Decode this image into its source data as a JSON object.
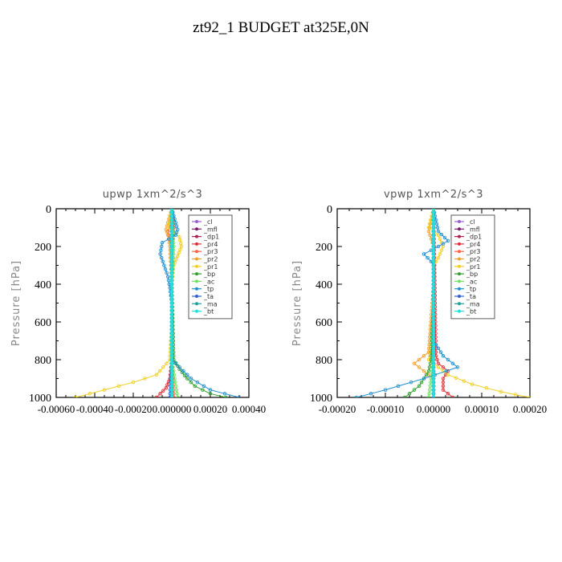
{
  "figure": {
    "title": "zt92_1  BUDGET at325E,0N"
  },
  "chart_data": [
    {
      "type": "line",
      "title": "upwp    1xm^2/s^3",
      "ylabel": "Pressure [hPa]",
      "xlabel": "",
      "ylim": [
        1000,
        0
      ],
      "xlim": [
        -0.0006,
        0.0004
      ],
      "yticks": [
        "0",
        "200",
        "400",
        "600",
        "800",
        "1000"
      ],
      "xticks": [
        "-0.00060",
        "-0.00040",
        "-0.00020",
        "0.000000",
        "0.00020",
        "0.00040"
      ],
      "legend_position": "top-right",
      "legend": [
        "_cl",
        "_mfl",
        "_dp1",
        "_pr4",
        "_pr3",
        "_pr2",
        "_pr1",
        "_bp",
        "_ac",
        "_tp",
        "_ta",
        "_ma",
        "_bt"
      ],
      "series": [
        {
          "name": "_cl",
          "color": "#9c5fd0",
          "p": [
            0,
            100,
            200,
            300,
            400,
            500,
            600,
            700,
            800,
            900,
            1000
          ],
          "x": [
            0,
            0,
            0,
            0,
            0,
            0,
            0,
            0,
            0,
            0,
            0
          ]
        },
        {
          "name": "_mfl",
          "color": "#7a1d6f",
          "p": [
            0,
            100,
            200,
            300,
            400,
            500,
            600,
            700,
            800,
            900,
            1000
          ],
          "x": [
            0,
            0,
            0,
            0,
            0,
            0,
            0,
            0,
            0,
            0,
            0
          ]
        },
        {
          "name": "_dp1",
          "color": "#b02050",
          "p": [
            0,
            100,
            200,
            300,
            400,
            500,
            600,
            700,
            800,
            900,
            1000
          ],
          "x": [
            0,
            0,
            0,
            0,
            0,
            0,
            0,
            0,
            0,
            0,
            0
          ]
        },
        {
          "name": "_pr4",
          "color": "#e0303a",
          "p": [
            0,
            100,
            140,
            200,
            400,
            800,
            900,
            950,
            980,
            1000
          ],
          "x": [
            0,
            1e-05,
            5e-06,
            0,
            0,
            0,
            -1e-05,
            -3e-05,
            -6e-05,
            -8e-05
          ]
        },
        {
          "name": "_pr3",
          "color": "#ff6040",
          "p": [
            0,
            100,
            120,
            160,
            200,
            400,
            800,
            1000
          ],
          "x": [
            0,
            -1e-05,
            -2e-05,
            -1e-05,
            0,
            0,
            0,
            1e-05
          ]
        },
        {
          "name": "_pr2",
          "color": "#f0a030",
          "p": [
            0,
            110,
            140,
            200,
            400,
            800,
            1000
          ],
          "x": [
            0,
            -3e-05,
            -2e-05,
            -1e-05,
            0,
            0,
            0
          ]
        },
        {
          "name": "_pr1",
          "color": "#f0d020",
          "p": [
            0,
            100,
            150,
            200,
            250,
            300,
            400,
            600,
            800,
            880,
            920,
            960,
            1000
          ],
          "x": [
            0,
            -2e-05,
            4e-05,
            5e-05,
            3e-05,
            1e-05,
            0,
            0,
            -1e-05,
            -8e-05,
            -0.0002,
            -0.00035,
            -0.0005
          ]
        },
        {
          "name": "_bp",
          "color": "#30a030",
          "p": [
            0,
            400,
            800,
            850,
            900,
            940,
            980,
            1000
          ],
          "x": [
            0,
            0,
            1e-05,
            4e-05,
            8e-05,
            0.00012,
            0.0002,
            0.00028
          ]
        },
        {
          "name": "_ac",
          "color": "#70e060",
          "p": [
            0,
            200,
            400,
            800,
            1000
          ],
          "x": [
            0,
            1e-05,
            0,
            0,
            3e-05
          ]
        },
        {
          "name": "_tp",
          "color": "#2090d0",
          "p": [
            0,
            110,
            140,
            180,
            240,
            300,
            360,
            420,
            500,
            600,
            800,
            900,
            960,
            1000
          ],
          "x": [
            0,
            3e-05,
            2e-05,
            -5e-05,
            -6e-05,
            -4e-05,
            -2e-05,
            -1e-05,
            0,
            0,
            0,
            0.0001,
            0.0002,
            0.00035
          ]
        },
        {
          "name": "_ta",
          "color": "#3060d0",
          "p": [
            0,
            200,
            400,
            800,
            1000
          ],
          "x": [
            0,
            0,
            0,
            0,
            -1e-05
          ]
        },
        {
          "name": "_ma",
          "color": "#20a0a0",
          "p": [
            0,
            200,
            400,
            800,
            1000
          ],
          "x": [
            0,
            0,
            0,
            0,
            0
          ]
        },
        {
          "name": "_bt",
          "color": "#20e0e0",
          "p": [
            0,
            200,
            400,
            800,
            1000
          ],
          "x": [
            0,
            0,
            0,
            0,
            0
          ]
        }
      ]
    },
    {
      "type": "line",
      "title": "vpwp    1xm^2/s^3",
      "ylabel": "Pressure [hPa]",
      "xlabel": "",
      "ylim": [
        1000,
        0
      ],
      "xlim": [
        -0.0002,
        0.0002
      ],
      "yticks": [
        "0",
        "200",
        "400",
        "600",
        "800",
        "1000"
      ],
      "xticks": [
        "-0.00020",
        "-0.00010",
        "0.00000",
        "0.00010",
        "0.00020"
      ],
      "legend_position": "top-right",
      "legend": [
        "_cl",
        "_mfl",
        "_dp1",
        "_pr4",
        "_pr3",
        "_pr2",
        "_pr1",
        "_bp",
        "_ac",
        "_tp",
        "_ta",
        "_ma",
        "_bt"
      ],
      "series": [
        {
          "name": "_cl",
          "color": "#9c5fd0",
          "p": [
            0,
            200,
            400,
            600,
            800,
            1000
          ],
          "x": [
            0,
            0,
            0,
            0,
            0,
            0
          ]
        },
        {
          "name": "_mfl",
          "color": "#7a1d6f",
          "p": [
            0,
            200,
            400,
            600,
            800,
            1000
          ],
          "x": [
            0,
            0,
            0,
            0,
            0,
            0
          ]
        },
        {
          "name": "_dp1",
          "color": "#b02050",
          "p": [
            0,
            200,
            400,
            600,
            800,
            1000
          ],
          "x": [
            0,
            0,
            0,
            0,
            0,
            0
          ]
        },
        {
          "name": "_pr4",
          "color": "#e0303a",
          "p": [
            0,
            780,
            820,
            860,
            900,
            960,
            1000
          ],
          "x": [
            0,
            5e-06,
            1e-05,
            3e-05,
            2e-05,
            2e-05,
            4e-05
          ]
        },
        {
          "name": "_pr3",
          "color": "#ff6040",
          "p": [
            0,
            200,
            400,
            800,
            1000
          ],
          "x": [
            0,
            0,
            0,
            0,
            0
          ]
        },
        {
          "name": "_pr2",
          "color": "#f0a030",
          "p": [
            0,
            120,
            160,
            200,
            400,
            760,
            820,
            860,
            900,
            1000
          ],
          "x": [
            0,
            -1e-05,
            -5e-06,
            0,
            0,
            -1e-05,
            -4e-05,
            -2e-05,
            0,
            0
          ]
        },
        {
          "name": "_pr1",
          "color": "#f0d020",
          "p": [
            0,
            100,
            140,
            200,
            260,
            300,
            400,
            700,
            800,
            880,
            930,
            970,
            1000
          ],
          "x": [
            0,
            -1e-05,
            1e-05,
            2e-05,
            1e-05,
            0,
            0,
            0,
            -1e-05,
            3e-05,
            8e-05,
            0.00014,
            0.0002
          ]
        },
        {
          "name": "_bp",
          "color": "#30a030",
          "p": [
            0,
            500,
            800,
            860,
            900,
            940,
            980,
            1000
          ],
          "x": [
            0,
            0,
            -5e-06,
            -1e-05,
            -2e-05,
            -3e-05,
            -5e-05,
            -6e-05
          ]
        },
        {
          "name": "_ac",
          "color": "#70e060",
          "p": [
            0,
            200,
            400,
            800,
            1000
          ],
          "x": [
            0,
            0,
            0,
            0,
            -1e-05
          ]
        },
        {
          "name": "_tp",
          "color": "#2090d0",
          "p": [
            0,
            120,
            170,
            200,
            240,
            280,
            300,
            400,
            700,
            780,
            840,
            900,
            960,
            1000
          ],
          "x": [
            0,
            1e-05,
            3e-05,
            1e-05,
            -2e-05,
            -5e-06,
            0,
            0,
            0,
            2e-05,
            5e-05,
            -2e-05,
            -0.0001,
            -0.00016
          ]
        },
        {
          "name": "_ta",
          "color": "#3060d0",
          "p": [
            0,
            200,
            400,
            800,
            1000
          ],
          "x": [
            0,
            0,
            0,
            0,
            0
          ]
        },
        {
          "name": "_ma",
          "color": "#20a0a0",
          "p": [
            0,
            200,
            400,
            800,
            1000
          ],
          "x": [
            0,
            0,
            0,
            0,
            0
          ]
        },
        {
          "name": "_bt",
          "color": "#20e0e0",
          "p": [
            0,
            200,
            400,
            800,
            1000
          ],
          "x": [
            0,
            0,
            0,
            0,
            0
          ]
        }
      ]
    }
  ]
}
